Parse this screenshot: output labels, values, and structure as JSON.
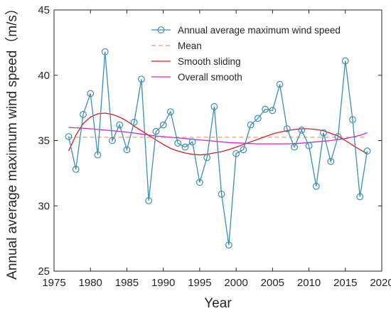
{
  "chart_data": {
    "type": "line",
    "title": "",
    "xlabel": "Year",
    "ylabel": "Annual average maximum wind speed（m/s）",
    "xlim": [
      1975,
      2020
    ],
    "ylim": [
      25,
      45
    ],
    "xticks": [
      1975,
      1980,
      1985,
      1990,
      1995,
      2000,
      2005,
      2010,
      2015,
      2020
    ],
    "yticks": [
      25,
      30,
      35,
      40,
      45
    ],
    "grid": false,
    "legend_position": "top-right",
    "series": [
      {
        "name": "Annual average maximum wind speed",
        "color": "#3b8fb4",
        "style": "line-with-circle-markers",
        "x": [
          1977,
          1978,
          1979,
          1980,
          1981,
          1982,
          1983,
          1984,
          1985,
          1986,
          1987,
          1988,
          1989,
          1990,
          1991,
          1992,
          1993,
          1994,
          1995,
          1996,
          1997,
          1998,
          1999,
          2000,
          2001,
          2002,
          2003,
          2004,
          2005,
          2006,
          2007,
          2008,
          2009,
          2010,
          2011,
          2012,
          2013,
          2014,
          2015,
          2016,
          2017,
          2018
        ],
        "values": [
          35.3,
          32.8,
          37.0,
          38.6,
          33.9,
          41.8,
          35.0,
          36.2,
          34.3,
          36.4,
          39.7,
          30.4,
          35.7,
          36.2,
          37.2,
          34.8,
          34.5,
          34.9,
          31.8,
          33.7,
          37.6,
          30.9,
          27.0,
          34.0,
          34.3,
          36.2,
          36.7,
          37.4,
          37.3,
          39.3,
          35.9,
          34.5,
          35.8,
          34.6,
          31.5,
          35.6,
          33.4,
          35.3,
          41.1,
          36.6,
          30.7,
          34.2
        ]
      },
      {
        "name": "Mean",
        "color": "#d9a07a",
        "style": "dashed",
        "x": [
          1977,
          2018
        ],
        "values": [
          35.25,
          35.25
        ]
      },
      {
        "name": "Smooth sliding",
        "color": "#d62020",
        "style": "solid",
        "x": [
          1977,
          1978,
          1979,
          1980,
          1981,
          1982,
          1983,
          1984,
          1985,
          1986,
          1987,
          1988,
          1989,
          1990,
          1991,
          1992,
          1993,
          1994,
          1995,
          1996,
          1997,
          1998,
          1999,
          2000,
          2001,
          2002,
          2003,
          2004,
          2005,
          2006,
          2007,
          2008,
          2009,
          2010,
          2011,
          2012,
          2013,
          2014,
          2015,
          2016,
          2017,
          2018
        ],
        "values": [
          34.2,
          35.4,
          36.3,
          36.8,
          37.05,
          37.1,
          37.0,
          36.8,
          36.5,
          36.1,
          35.75,
          35.4,
          35.05,
          34.7,
          34.4,
          34.2,
          34.05,
          33.95,
          33.9,
          33.95,
          34.05,
          34.15,
          34.3,
          34.5,
          34.7,
          34.9,
          35.1,
          35.3,
          35.5,
          35.65,
          35.75,
          35.85,
          35.9,
          35.9,
          35.85,
          35.75,
          35.55,
          35.35,
          35.0,
          34.65,
          34.3,
          34.0
        ]
      },
      {
        "name": "Overall smooth",
        "color": "#dd22dd",
        "style": "solid",
        "x": [
          1977,
          1979,
          1981,
          1983,
          1985,
          1987,
          1989,
          1991,
          1993,
          1995,
          1997,
          1999,
          2001,
          2003,
          2005,
          2007,
          2009,
          2011,
          2013,
          2015,
          2017,
          2018
        ],
        "values": [
          36.0,
          35.95,
          35.85,
          35.75,
          35.65,
          35.5,
          35.35,
          35.25,
          35.15,
          35.05,
          34.95,
          34.85,
          34.8,
          34.75,
          34.75,
          34.75,
          34.8,
          34.9,
          35.0,
          35.15,
          35.4,
          35.6
        ]
      }
    ]
  }
}
